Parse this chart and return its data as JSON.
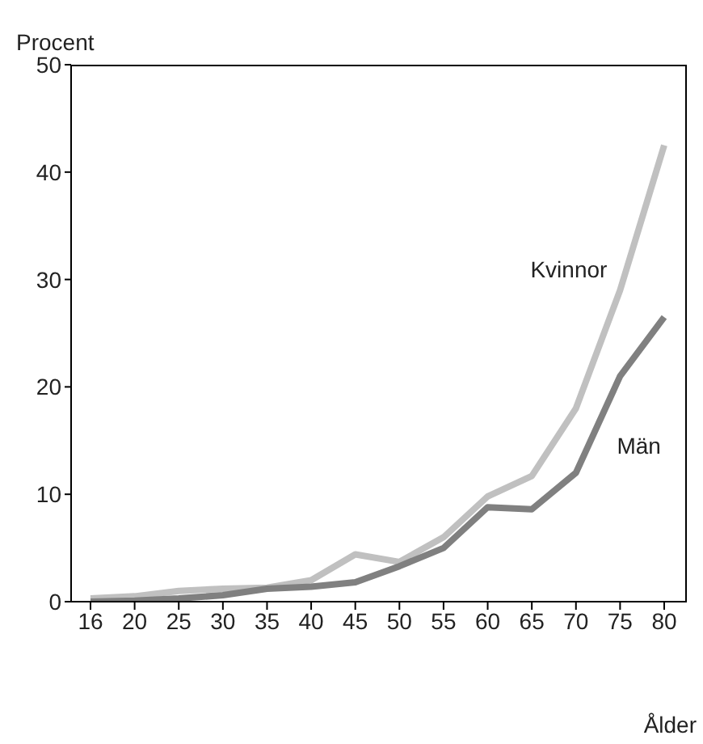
{
  "chart_data": {
    "type": "line",
    "ylabel": "Procent",
    "xlabel": "Ålder",
    "categories": [
      "16",
      "20",
      "25",
      "30",
      "35",
      "40",
      "45",
      "50",
      "55",
      "60",
      "65",
      "70",
      "75",
      "80"
    ],
    "series": [
      {
        "name": "Kvinnor",
        "color": "#c0c0c0",
        "values": [
          0.3,
          0.5,
          1.0,
          1.2,
          1.3,
          2.0,
          4.4,
          3.7,
          6.0,
          9.8,
          11.7,
          18,
          29,
          42.5
        ]
      },
      {
        "name": "Män",
        "color": "#808080",
        "values": [
          0,
          0.1,
          0.3,
          0.6,
          1.2,
          1.4,
          1.8,
          3.3,
          5.0,
          8.8,
          8.6,
          12,
          21,
          26.5
        ]
      }
    ],
    "ylim": [
      0,
      50
    ],
    "yticks": [
      0,
      10,
      20,
      30,
      40,
      50
    ],
    "grid": false,
    "legend": false,
    "marker": "none",
    "line_style": "solid"
  }
}
